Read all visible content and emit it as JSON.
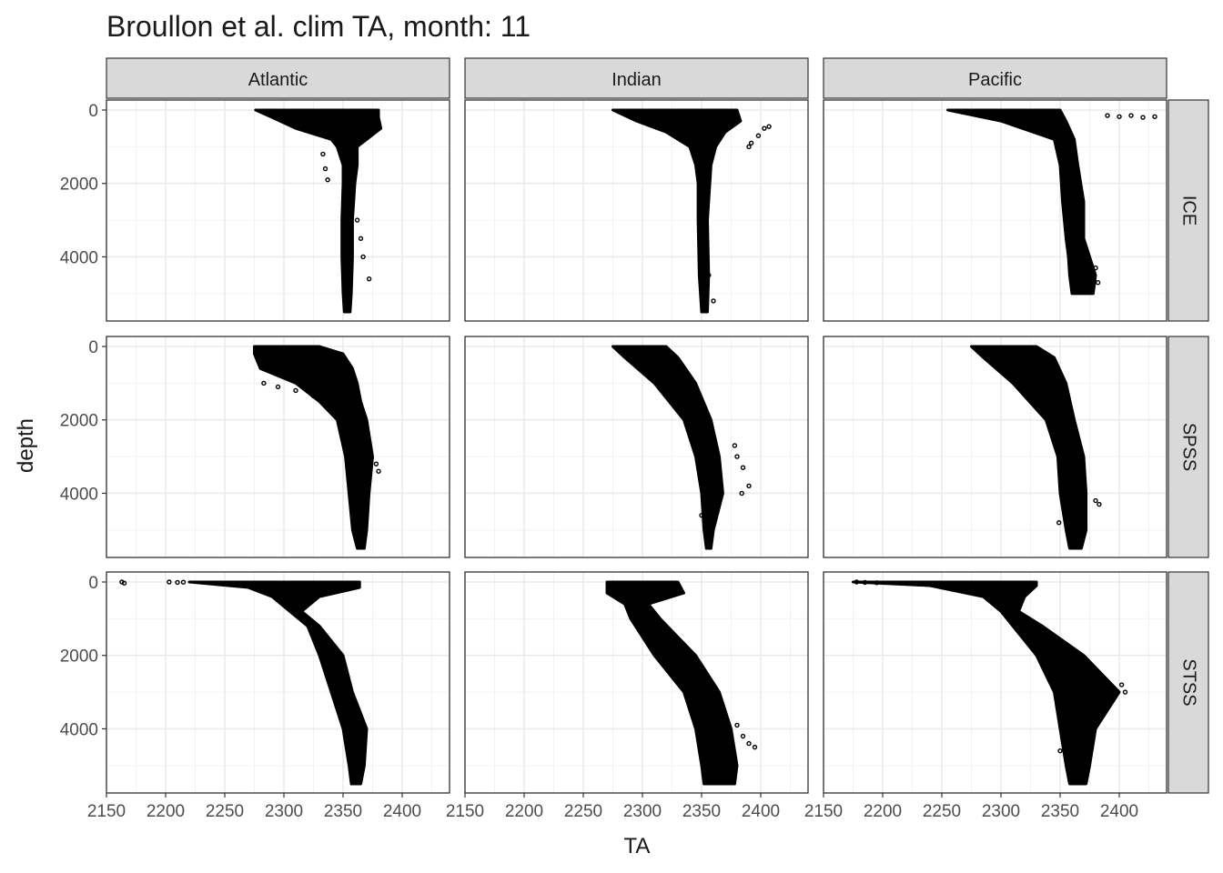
{
  "chart_data": {
    "type": "scatter",
    "title": "Broullon et al. clim TA, month: 11",
    "xlabel": "TA",
    "ylabel": "depth",
    "xlim": [
      2150,
      2440
    ],
    "ylim": [
      0,
      5500
    ],
    "y_reversed": true,
    "x_ticks": [
      2150,
      2200,
      2250,
      2300,
      2350,
      2400
    ],
    "y_ticks": [
      0,
      2000,
      4000
    ],
    "grid": true,
    "facet_columns": [
      "Atlantic",
      "Indian",
      "Pacific"
    ],
    "facet_rows": [
      "ICE",
      "SPSS",
      "STSS"
    ],
    "point_color": "#000000",
    "panels": [
      {
        "col": "Atlantic",
        "row": "ICE",
        "profile": [
          [
            0,
            2276,
            2380
          ],
          [
            200,
            2290,
            2380
          ],
          [
            500,
            2310,
            2382
          ],
          [
            800,
            2340,
            2370
          ],
          [
            1000,
            2345,
            2362
          ],
          [
            1500,
            2350,
            2362
          ],
          [
            2000,
            2350,
            2360
          ],
          [
            3000,
            2349,
            2358
          ],
          [
            4000,
            2349,
            2358
          ],
          [
            5000,
            2350,
            2357
          ],
          [
            5500,
            2351,
            2356
          ]
        ],
        "outliers": [
          [
            2338,
            700
          ],
          [
            2333,
            1200
          ],
          [
            2335,
            1600
          ],
          [
            2337,
            1900
          ],
          [
            2362,
            3000
          ],
          [
            2365,
            3500
          ],
          [
            2367,
            4000
          ],
          [
            2372,
            4600
          ]
        ]
      },
      {
        "col": "Indian",
        "row": "ICE",
        "profile": [
          [
            0,
            2275,
            2380
          ],
          [
            300,
            2295,
            2383
          ],
          [
            600,
            2320,
            2370
          ],
          [
            1000,
            2340,
            2362
          ],
          [
            1500,
            2345,
            2358
          ],
          [
            2000,
            2347,
            2357
          ],
          [
            3000,
            2347,
            2355
          ],
          [
            4500,
            2348,
            2356
          ],
          [
            5500,
            2350,
            2355
          ]
        ],
        "outliers": [
          [
            2392,
            900
          ],
          [
            2398,
            700
          ],
          [
            2403,
            500
          ],
          [
            2407,
            450
          ],
          [
            2390,
            1000
          ],
          [
            2356,
            4500
          ],
          [
            2360,
            5200
          ]
        ]
      },
      {
        "col": "Pacific",
        "row": "ICE",
        "profile": [
          [
            0,
            2255,
            2350
          ],
          [
            300,
            2300,
            2355
          ],
          [
            800,
            2345,
            2362
          ],
          [
            1500,
            2350,
            2365
          ],
          [
            2500,
            2352,
            2370
          ],
          [
            3500,
            2355,
            2370
          ],
          [
            4000,
            2357,
            2375
          ],
          [
            4500,
            2358,
            2380
          ],
          [
            5000,
            2360,
            2378
          ]
        ],
        "outliers": [
          [
            2390,
            150
          ],
          [
            2400,
            180
          ],
          [
            2410,
            150
          ],
          [
            2420,
            200
          ],
          [
            2430,
            180
          ],
          [
            2380,
            4300
          ],
          [
            2382,
            4700
          ]
        ]
      },
      {
        "col": "Atlantic",
        "row": "SPSS",
        "profile": [
          [
            0,
            2275,
            2330
          ],
          [
            200,
            2275,
            2350
          ],
          [
            600,
            2280,
            2358
          ],
          [
            1000,
            2310,
            2362
          ],
          [
            1500,
            2330,
            2365
          ],
          [
            2000,
            2345,
            2370
          ],
          [
            3000,
            2352,
            2375
          ],
          [
            4000,
            2355,
            2372
          ],
          [
            5000,
            2358,
            2370
          ],
          [
            5500,
            2362,
            2368
          ]
        ],
        "outliers": [
          [
            2283,
            1000
          ],
          [
            2295,
            1100
          ],
          [
            2310,
            1200
          ],
          [
            2325,
            1350
          ],
          [
            2380,
            3400
          ],
          [
            2378,
            3200
          ]
        ]
      },
      {
        "col": "Indian",
        "row": "SPSS",
        "profile": [
          [
            0,
            2275,
            2320
          ],
          [
            300,
            2285,
            2330
          ],
          [
            1000,
            2310,
            2345
          ],
          [
            2000,
            2335,
            2358
          ],
          [
            3000,
            2345,
            2365
          ],
          [
            4000,
            2350,
            2368
          ],
          [
            5000,
            2352,
            2360
          ],
          [
            5500,
            2354,
            2358
          ]
        ],
        "outliers": [
          [
            2378,
            2700
          ],
          [
            2380,
            3000
          ],
          [
            2385,
            3300
          ],
          [
            2384,
            4000
          ],
          [
            2390,
            3800
          ],
          [
            2350,
            4600
          ]
        ]
      },
      {
        "col": "Pacific",
        "row": "SPSS",
        "profile": [
          [
            0,
            2275,
            2330
          ],
          [
            300,
            2285,
            2345
          ],
          [
            1000,
            2310,
            2355
          ],
          [
            2000,
            2338,
            2362
          ],
          [
            3000,
            2348,
            2370
          ],
          [
            4000,
            2350,
            2372
          ],
          [
            5000,
            2355,
            2372
          ],
          [
            5500,
            2358,
            2368
          ]
        ],
        "outliers": [
          [
            2380,
            4200
          ],
          [
            2383,
            4300
          ],
          [
            2352,
            3500
          ],
          [
            2349,
            4800
          ]
        ]
      },
      {
        "col": "Atlantic",
        "row": "STSS",
        "profile": [
          [
            0,
            2220,
            2364
          ],
          [
            150,
            2270,
            2364
          ],
          [
            400,
            2290,
            2330
          ],
          [
            800,
            2305,
            2315
          ],
          [
            1200,
            2320,
            2330
          ],
          [
            2000,
            2330,
            2350
          ],
          [
            3000,
            2340,
            2358
          ],
          [
            4000,
            2350,
            2370
          ],
          [
            5000,
            2355,
            2368
          ],
          [
            5500,
            2357,
            2365
          ]
        ],
        "outliers": [
          [
            2163,
            0
          ],
          [
            2165,
            30
          ],
          [
            2203,
            0
          ],
          [
            2210,
            10
          ],
          [
            2215,
            5
          ]
        ]
      },
      {
        "col": "Indian",
        "row": "STSS",
        "profile": [
          [
            0,
            2270,
            2330
          ],
          [
            300,
            2270,
            2335
          ],
          [
            600,
            2285,
            2305
          ],
          [
            1000,
            2290,
            2315
          ],
          [
            2000,
            2310,
            2345
          ],
          [
            3000,
            2335,
            2365
          ],
          [
            4000,
            2345,
            2375
          ],
          [
            5000,
            2350,
            2380
          ],
          [
            5500,
            2352,
            2378
          ]
        ],
        "outliers": [
          [
            2385,
            4200
          ],
          [
            2390,
            4400
          ],
          [
            2395,
            4500
          ],
          [
            2380,
            3900
          ]
        ]
      },
      {
        "col": "Pacific",
        "row": "STSS",
        "profile": [
          [
            0,
            2175,
            2330
          ],
          [
            100,
            2240,
            2330
          ],
          [
            400,
            2285,
            2320
          ],
          [
            800,
            2300,
            2315
          ],
          [
            1200,
            2310,
            2335
          ],
          [
            2000,
            2330,
            2370
          ],
          [
            3000,
            2345,
            2400
          ],
          [
            4000,
            2350,
            2380
          ],
          [
            5000,
            2355,
            2375
          ],
          [
            5500,
            2358,
            2372
          ]
        ],
        "outliers": [
          [
            2178,
            0
          ],
          [
            2185,
            10
          ],
          [
            2195,
            20
          ],
          [
            2405,
            3000
          ],
          [
            2402,
            2800
          ],
          [
            2350,
            4600
          ]
        ]
      }
    ]
  }
}
